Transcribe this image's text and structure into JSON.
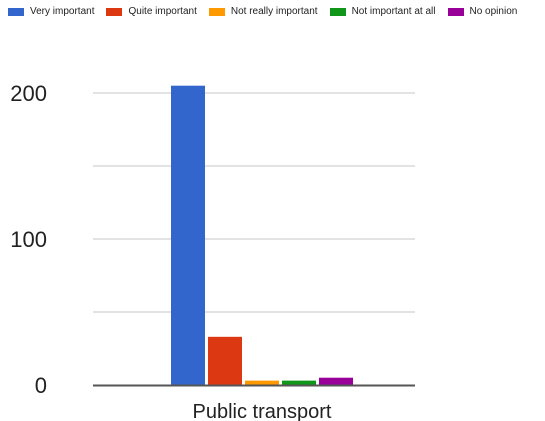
{
  "chart_data": {
    "type": "bar",
    "categories": [
      "Public transport"
    ],
    "series": [
      {
        "name": "Very important",
        "values": [
          205
        ],
        "color": "#3366cc"
      },
      {
        "name": "Quite important",
        "values": [
          33
        ],
        "color": "#dc3912"
      },
      {
        "name": "Not really important",
        "values": [
          3
        ],
        "color": "#ff9900"
      },
      {
        "name": "Not important at all",
        "values": [
          3
        ],
        "color": "#109618"
      },
      {
        "name": "No opinion",
        "values": [
          5
        ],
        "color": "#990099"
      }
    ],
    "y_ticks": [
      "0",
      "100",
      "200"
    ],
    "ylim": [
      0,
      220
    ],
    "grid": true,
    "legend_position": "top"
  }
}
